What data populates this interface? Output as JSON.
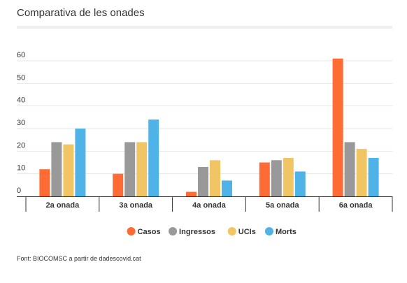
{
  "title": "Comparativa de les onades",
  "source": "Font: BIOCOMSC a partir de dadescovid.cat",
  "chart_data": {
    "type": "bar",
    "title": "Comparativa de les onades",
    "xlabel": "",
    "ylabel": "",
    "ylim": [
      0,
      60
    ],
    "yticks": [
      0,
      10,
      20,
      30,
      40,
      50,
      60
    ],
    "grid": true,
    "legend_position": "bottom",
    "categories": [
      "2a onada",
      "3a onada",
      "4a onada",
      "5a onada",
      "6a onada"
    ],
    "series": [
      {
        "name": "Casos",
        "color": "#ff6b35",
        "values": [
          12,
          10,
          2,
          15,
          61
        ]
      },
      {
        "name": "Ingressos",
        "color": "#999999",
        "values": [
          24,
          24,
          13,
          16,
          24
        ]
      },
      {
        "name": "UCIs",
        "color": "#f2c564",
        "values": [
          23,
          24,
          16,
          17,
          21
        ]
      },
      {
        "name": "Morts",
        "color": "#4fb3e8",
        "values": [
          30,
          34,
          7,
          11,
          17
        ]
      }
    ]
  }
}
